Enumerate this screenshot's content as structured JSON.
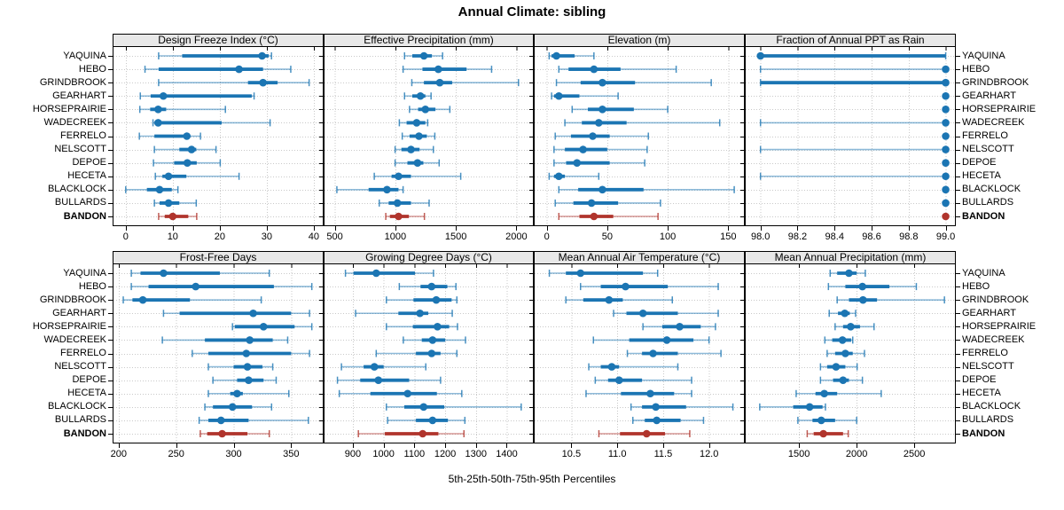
{
  "title": "Annual Climate: sibling",
  "caption": "5th-25th-50th-75th-95th Percentiles",
  "colors": {
    "series": "#1b75b3",
    "highlight": "#b0342c",
    "grid": "#c9c9c9",
    "strip_bg": "#e8e8e8",
    "border": "#000000"
  },
  "chart_data": {
    "type": "dotplot",
    "percentiles": [
      "5th",
      "25th",
      "50th",
      "75th",
      "95th"
    ],
    "stations": [
      "YAQUINA",
      "HEBO",
      "GRINDBROOK",
      "GEARHART",
      "HORSEPRAIRIE",
      "WADECREEK",
      "FERRELO",
      "NELSCOTT",
      "DEPOE",
      "HECETA",
      "BLACKLOCK",
      "BULLARDS",
      "BANDON"
    ],
    "highlight_station": "BANDON",
    "legend": "grid on, dotted; panels share station y-axis; x axes independent",
    "panels": [
      {
        "title": "Design Freeze Index (°C)",
        "row": 0,
        "ticks": [
          0,
          10,
          20,
          30,
          40
        ],
        "tick_labels": [
          "0",
          "10",
          "20",
          "30",
          "40"
        ],
        "domain": [
          -2.6,
          41.9
        ],
        "values": [
          [
            7,
            12,
            29,
            30.4,
            31
          ],
          [
            4.1,
            7,
            24.1,
            29.2,
            35.1
          ],
          [
            7,
            26,
            29.2,
            32.3,
            39
          ],
          [
            3.1,
            5.3,
            8,
            26.8,
            27.3
          ],
          [
            3,
            5.2,
            6.9,
            8.6,
            21.2
          ],
          [
            5.8,
            6.1,
            6.9,
            20.4,
            30.7
          ],
          [
            2.9,
            6.1,
            13,
            13.5,
            15.9
          ],
          [
            6.1,
            11.4,
            14,
            15,
            19.2
          ],
          [
            5.9,
            10.3,
            13.1,
            15.1,
            20.1
          ],
          [
            6.3,
            7.8,
            9.1,
            12.9,
            24.1
          ],
          [
            0,
            4.5,
            7.2,
            9.8,
            11.1
          ],
          [
            6.1,
            7.2,
            9.1,
            11.4,
            15
          ],
          [
            7,
            8.3,
            10,
            13.3,
            15.1
          ]
        ]
      },
      {
        "title": "Effective Precipitation (mm)",
        "row": 0,
        "ticks": [
          500,
          1000,
          1500,
          2000
        ],
        "tick_labels": [
          "500",
          "1000",
          "1500",
          "2000"
        ],
        "domain": [
          415,
          2136
        ],
        "values": [
          [
            1076,
            1140,
            1236,
            1302,
            1390
          ],
          [
            1064,
            1224,
            1355,
            1588,
            1795
          ],
          [
            1136,
            1236,
            1367,
            1469,
            2017
          ],
          [
            1076,
            1140,
            1207,
            1248,
            1295
          ],
          [
            1117,
            1188,
            1248,
            1331,
            1450
          ],
          [
            1033,
            1093,
            1176,
            1248,
            1267
          ],
          [
            1057,
            1117,
            1195,
            1260,
            1326
          ],
          [
            998,
            1050,
            1129,
            1200,
            1314
          ],
          [
            998,
            1100,
            1183,
            1231,
            1362
          ],
          [
            826,
            969,
            1026,
            1129,
            1540
          ],
          [
            517,
            779,
            931,
            1026,
            1064
          ],
          [
            867,
            945,
            1017,
            1129,
            1279
          ],
          [
            921,
            955,
            1026,
            1112,
            1240
          ]
        ]
      },
      {
        "title": "Elevation (m)",
        "row": 0,
        "ticks": [
          0,
          50,
          100,
          150
        ],
        "tick_labels": [
          "0",
          "50",
          "100",
          "150"
        ],
        "domain": [
          -10,
          163
        ],
        "values": [
          [
            2,
            4,
            8,
            23,
            39
          ],
          [
            10,
            18,
            39,
            61,
            107
          ],
          [
            8,
            28,
            46,
            73,
            136
          ],
          [
            4,
            6,
            10,
            27,
            59
          ],
          [
            21,
            34,
            46,
            72,
            100
          ],
          [
            15,
            29,
            43,
            66,
            143
          ],
          [
            7,
            20,
            38,
            52,
            84
          ],
          [
            6,
            15,
            30,
            50,
            83
          ],
          [
            6,
            16,
            25,
            52,
            81
          ],
          [
            2,
            6,
            10,
            15,
            43
          ],
          [
            10,
            26,
            46,
            80,
            155
          ],
          [
            7,
            22,
            37,
            59,
            94
          ],
          [
            10,
            27,
            39,
            55,
            92
          ]
        ]
      },
      {
        "title": "Fraction of Annual PPT as Rain",
        "row": 0,
        "ticks": [
          98.0,
          98.2,
          98.4,
          98.6,
          98.8,
          99.0
        ],
        "tick_labels": [
          "98.0",
          "98.2",
          "98.4",
          "98.6",
          "98.8",
          "99.0"
        ],
        "domain": [
          97.92,
          99.05
        ],
        "values": [
          [
            98.0,
            98.0,
            98.0,
            99.0,
            99.0
          ],
          [
            98.0,
            99.0,
            99.0,
            99.0,
            99.0
          ],
          [
            98.0,
            98.0,
            99.0,
            99.0,
            99.0
          ],
          [
            99.0,
            99.0,
            99.0,
            99.0,
            99.0
          ],
          [
            99.0,
            99.0,
            99.0,
            99.0,
            99.0
          ],
          [
            98.0,
            99.0,
            99.0,
            99.0,
            99.0
          ],
          [
            99.0,
            99.0,
            99.0,
            99.0,
            99.0
          ],
          [
            98.0,
            99.0,
            99.0,
            99.0,
            99.0
          ],
          [
            99.0,
            99.0,
            99.0,
            99.0,
            99.0
          ],
          [
            98.0,
            99.0,
            99.0,
            99.0,
            99.0
          ],
          [
            99.0,
            99.0,
            99.0,
            99.0,
            99.0
          ],
          [
            99.0,
            99.0,
            99.0,
            99.0,
            99.0
          ],
          [
            99.0,
            99.0,
            99.0,
            99.0,
            99.0
          ]
        ]
      },
      {
        "title": "Frost-Free Days",
        "row": 1,
        "ticks": [
          200,
          250,
          300,
          350
        ],
        "tick_labels": [
          "200",
          "250",
          "300",
          "350"
        ],
        "domain": [
          195.5,
          377.5
        ],
        "values": [
          [
            211,
            219,
            239,
            288,
            331
          ],
          [
            211,
            226,
            267,
            335,
            368
          ],
          [
            204,
            212,
            221,
            262,
            324
          ],
          [
            239,
            253,
            317,
            350,
            366
          ],
          [
            299,
            301,
            326,
            353,
            368
          ],
          [
            238,
            275,
            314,
            334,
            347
          ],
          [
            264,
            278,
            311,
            350,
            366
          ],
          [
            278,
            300,
            312,
            325,
            334
          ],
          [
            282,
            303,
            313,
            326,
            337
          ],
          [
            278,
            297,
            303,
            308,
            348
          ],
          [
            275,
            282,
            299,
            316,
            333
          ],
          [
            270,
            278,
            289,
            313,
            365
          ],
          [
            271,
            277,
            290,
            312,
            331
          ]
        ]
      },
      {
        "title": "Growing Degree Days (°C)",
        "row": 1,
        "ticks": [
          900,
          1000,
          1100,
          1200,
          1300,
          1400
        ],
        "tick_labels": [
          "900",
          "1000",
          "1100",
          "1200",
          "1300",
          "1400"
        ],
        "domain": [
          808,
          1485
        ],
        "values": [
          [
            876,
            902,
            976,
            1102,
            1162
          ],
          [
            1051,
            1120,
            1156,
            1207,
            1235
          ],
          [
            1009,
            1097,
            1171,
            1221,
            1238
          ],
          [
            909,
            1048,
            1118,
            1145,
            1223
          ],
          [
            1009,
            1095,
            1175,
            1213,
            1240
          ],
          [
            1064,
            1124,
            1159,
            1200,
            1266
          ],
          [
            976,
            1105,
            1156,
            1185,
            1238
          ],
          [
            863,
            935,
            970,
            1000,
            1137
          ],
          [
            850,
            924,
            983,
            1083,
            1185
          ],
          [
            856,
            957,
            1078,
            1173,
            1254
          ],
          [
            1009,
            1067,
            1130,
            1197,
            1447
          ],
          [
            1013,
            1105,
            1159,
            1209,
            1264
          ],
          [
            918,
            1004,
            1127,
            1178,
            1261
          ]
        ]
      },
      {
        "title": "Mean Annual Air Temperature (°C)",
        "row": 1,
        "ticks": [
          10.5,
          11.0,
          11.5,
          12.0
        ],
        "tick_labels": [
          "10.5",
          "11.0",
          "11.5",
          "12.0"
        ],
        "domain": [
          10.1,
          12.38
        ],
        "values": [
          [
            10.26,
            10.44,
            10.6,
            11.28,
            11.44
          ],
          [
            10.6,
            10.82,
            11.09,
            11.55,
            12.1
          ],
          [
            10.44,
            10.63,
            10.91,
            11.06,
            11.6
          ],
          [
            10.96,
            11.1,
            11.28,
            11.66,
            12.1
          ],
          [
            11.28,
            11.49,
            11.68,
            11.91,
            12.07
          ],
          [
            10.74,
            11.13,
            11.54,
            11.83,
            12.0
          ],
          [
            11.11,
            11.27,
            11.39,
            11.66,
            12.13
          ],
          [
            10.69,
            10.82,
            10.94,
            11.02,
            11.66
          ],
          [
            10.76,
            10.9,
            11.02,
            11.27,
            11.81
          ],
          [
            10.66,
            11.04,
            11.36,
            11.62,
            11.81
          ],
          [
            11.15,
            11.27,
            11.42,
            11.75,
            12.26
          ],
          [
            11.17,
            11.3,
            11.43,
            11.69,
            11.94
          ],
          [
            10.8,
            11.03,
            11.32,
            11.52,
            11.79
          ]
        ]
      },
      {
        "title": "Mean Annual Precipitation (mm)",
        "row": 1,
        "ticks": [
          1500,
          2000,
          2500
        ],
        "tick_labels": [
          "1500",
          "2000",
          "2500"
        ],
        "domain": [
          1037,
          2853
        ],
        "values": [
          [
            1770,
            1831,
            1933,
            2000,
            2075
          ],
          [
            1755,
            1902,
            2050,
            2284,
            2518
          ],
          [
            1831,
            1933,
            2055,
            2177,
            2762
          ],
          [
            1762,
            1838,
            1897,
            1940,
            1991
          ],
          [
            1813,
            1882,
            1948,
            2029,
            2151
          ],
          [
            1724,
            1788,
            1877,
            1952,
            1966
          ],
          [
            1744,
            1813,
            1902,
            1966,
            2068
          ],
          [
            1686,
            1744,
            1821,
            1902,
            2004
          ],
          [
            1686,
            1795,
            1882,
            1933,
            2050
          ],
          [
            1475,
            1643,
            1719,
            1831,
            2213
          ],
          [
            1159,
            1449,
            1592,
            1704,
            1729
          ],
          [
            1490,
            1617,
            1693,
            1813,
            2000
          ],
          [
            1571,
            1627,
            1711,
            1882,
            1927
          ]
        ]
      }
    ]
  }
}
